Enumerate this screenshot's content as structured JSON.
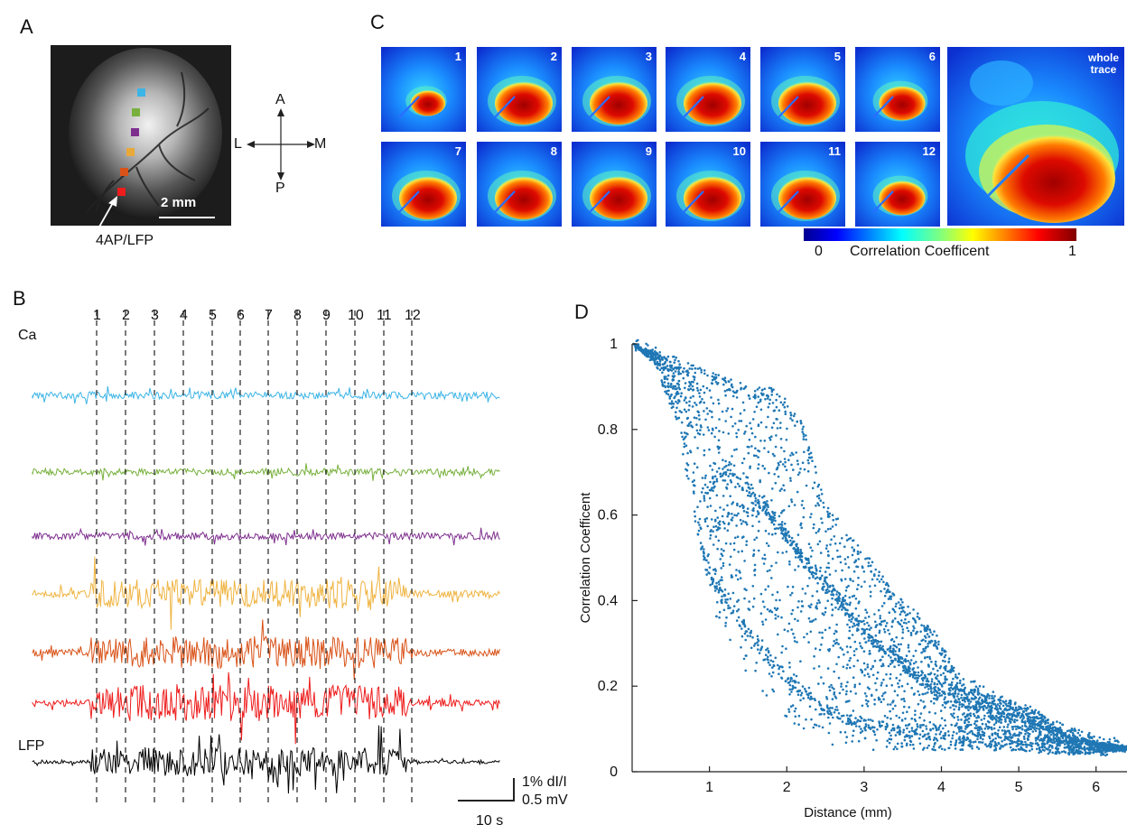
{
  "panels": {
    "a": "A",
    "b": "B",
    "c": "C",
    "d": "D"
  },
  "panel_a": {
    "scale_bar_label": "2 mm",
    "injection_label": "4AP/LFP",
    "compass": {
      "up": "A",
      "down": "P",
      "left": "L",
      "right": "M"
    },
    "roi_colors": [
      "#3cb4e6",
      "#77b03c",
      "#7e2f8e",
      "#e8a93a",
      "#d95319",
      "#ee1c1c"
    ]
  },
  "panel_b": {
    "ca_label": "Ca",
    "lfp_label": "LFP",
    "epoch_labels": [
      "1",
      "2",
      "3",
      "4",
      "5",
      "6",
      "7",
      "8",
      "9",
      "10",
      "11",
      "12"
    ],
    "trace_colors": [
      "#3cb4e6",
      "#77b03c",
      "#7e2f8e",
      "#efb442",
      "#d95319",
      "#ee1c1c",
      "#000000"
    ],
    "scale_y_label_1": "1% dI/I",
    "scale_y_label_2": "0.5 mV",
    "scale_x_label": "10 s"
  },
  "panel_c": {
    "map_numbers": [
      "1",
      "2",
      "3",
      "4",
      "5",
      "6",
      "7",
      "8",
      "9",
      "10",
      "11",
      "12"
    ],
    "whole_label_1": "whole",
    "whole_label_2": "trace",
    "colorbar_min": "0",
    "colorbar_title": "Correlation Coefficent",
    "colorbar_max": "1",
    "colormap": "jet"
  },
  "chart_data": {
    "type": "scatter",
    "xlabel": "Distance (mm)",
    "ylabel": "Correlation Coefficent",
    "xlim": [
      0,
      6.4
    ],
    "ylim": [
      0,
      1
    ],
    "xticks": [
      "1",
      "2",
      "3",
      "4",
      "5",
      "6"
    ],
    "yticks": [
      "0",
      "0.2",
      "0.4",
      "0.6",
      "0.8",
      "1"
    ],
    "color": "#1f77b4",
    "grid": false,
    "envelope": {
      "upper": [
        [
          0.02,
          1.0
        ],
        [
          0.3,
          0.98
        ],
        [
          0.6,
          0.95
        ],
        [
          1.0,
          0.93
        ],
        [
          1.3,
          0.91
        ],
        [
          1.6,
          0.89
        ],
        [
          2.0,
          0.87
        ],
        [
          2.3,
          0.74
        ],
        [
          2.6,
          0.58
        ],
        [
          2.9,
          0.51
        ],
        [
          3.2,
          0.47
        ],
        [
          3.5,
          0.38
        ],
        [
          3.7,
          0.33
        ],
        [
          3.85,
          0.35
        ],
        [
          4.0,
          0.3
        ],
        [
          4.3,
          0.2
        ],
        [
          4.8,
          0.17
        ],
        [
          5.2,
          0.15
        ],
        [
          5.6,
          0.09
        ],
        [
          6.0,
          0.07
        ],
        [
          6.4,
          0.06
        ]
      ],
      "lower": [
        [
          0.02,
          1.0
        ],
        [
          0.3,
          0.95
        ],
        [
          0.6,
          0.8
        ],
        [
          0.9,
          0.5
        ],
        [
          1.1,
          0.35
        ],
        [
          1.4,
          0.25
        ],
        [
          1.7,
          0.18
        ],
        [
          2.0,
          0.12
        ],
        [
          2.4,
          0.07
        ],
        [
          2.8,
          0.05
        ],
        [
          3.3,
          0.05
        ],
        [
          3.8,
          0.05
        ],
        [
          4.3,
          0.05
        ],
        [
          4.8,
          0.05
        ],
        [
          5.3,
          0.04
        ],
        [
          5.8,
          0.04
        ],
        [
          6.4,
          0.05
        ]
      ]
    },
    "structures": [
      {
        "name": "upper_band",
        "points": [
          [
            0.02,
            1.0
          ],
          [
            0.5,
            0.96
          ],
          [
            1.0,
            0.92
          ],
          [
            1.5,
            0.89
          ],
          [
            1.9,
            0.88
          ],
          [
            2.2,
            0.8
          ],
          [
            2.5,
            0.62
          ],
          [
            2.8,
            0.54
          ],
          [
            3.1,
            0.48
          ],
          [
            3.4,
            0.4
          ],
          [
            3.8,
            0.34
          ],
          [
            4.2,
            0.22
          ],
          [
            4.8,
            0.16
          ],
          [
            5.4,
            0.11
          ],
          [
            6.0,
            0.07
          ],
          [
            6.4,
            0.06
          ]
        ]
      },
      {
        "name": "mid_band_1",
        "points": [
          [
            0.9,
            0.65
          ],
          [
            1.2,
            0.7
          ],
          [
            1.5,
            0.66
          ],
          [
            1.8,
            0.6
          ],
          [
            2.1,
            0.52
          ],
          [
            2.4,
            0.45
          ],
          [
            2.8,
            0.38
          ],
          [
            3.2,
            0.3
          ],
          [
            3.6,
            0.24
          ],
          [
            4.0,
            0.2
          ],
          [
            4.5,
            0.17
          ],
          [
            5.0,
            0.14
          ],
          [
            5.5,
            0.1
          ],
          [
            6.0,
            0.07
          ]
        ]
      },
      {
        "name": "mid_band_2",
        "points": [
          [
            1.0,
            0.55
          ],
          [
            1.3,
            0.6
          ],
          [
            1.6,
            0.62
          ],
          [
            1.9,
            0.58
          ],
          [
            2.2,
            0.5
          ],
          [
            2.6,
            0.42
          ],
          [
            3.0,
            0.32
          ],
          [
            3.5,
            0.25
          ],
          [
            4.0,
            0.18
          ],
          [
            4.6,
            0.14
          ],
          [
            5.2,
            0.1
          ],
          [
            5.8,
            0.07
          ]
        ]
      },
      {
        "name": "lower_band",
        "points": [
          [
            0.8,
            0.6
          ],
          [
            1.0,
            0.45
          ],
          [
            1.3,
            0.38
          ],
          [
            1.6,
            0.3
          ],
          [
            2.0,
            0.22
          ],
          [
            2.4,
            0.15
          ],
          [
            2.8,
            0.12
          ],
          [
            3.3,
            0.1
          ],
          [
            3.8,
            0.09
          ],
          [
            4.4,
            0.08
          ],
          [
            5.0,
            0.07
          ],
          [
            5.6,
            0.06
          ],
          [
            6.2,
            0.05
          ]
        ]
      }
    ]
  }
}
